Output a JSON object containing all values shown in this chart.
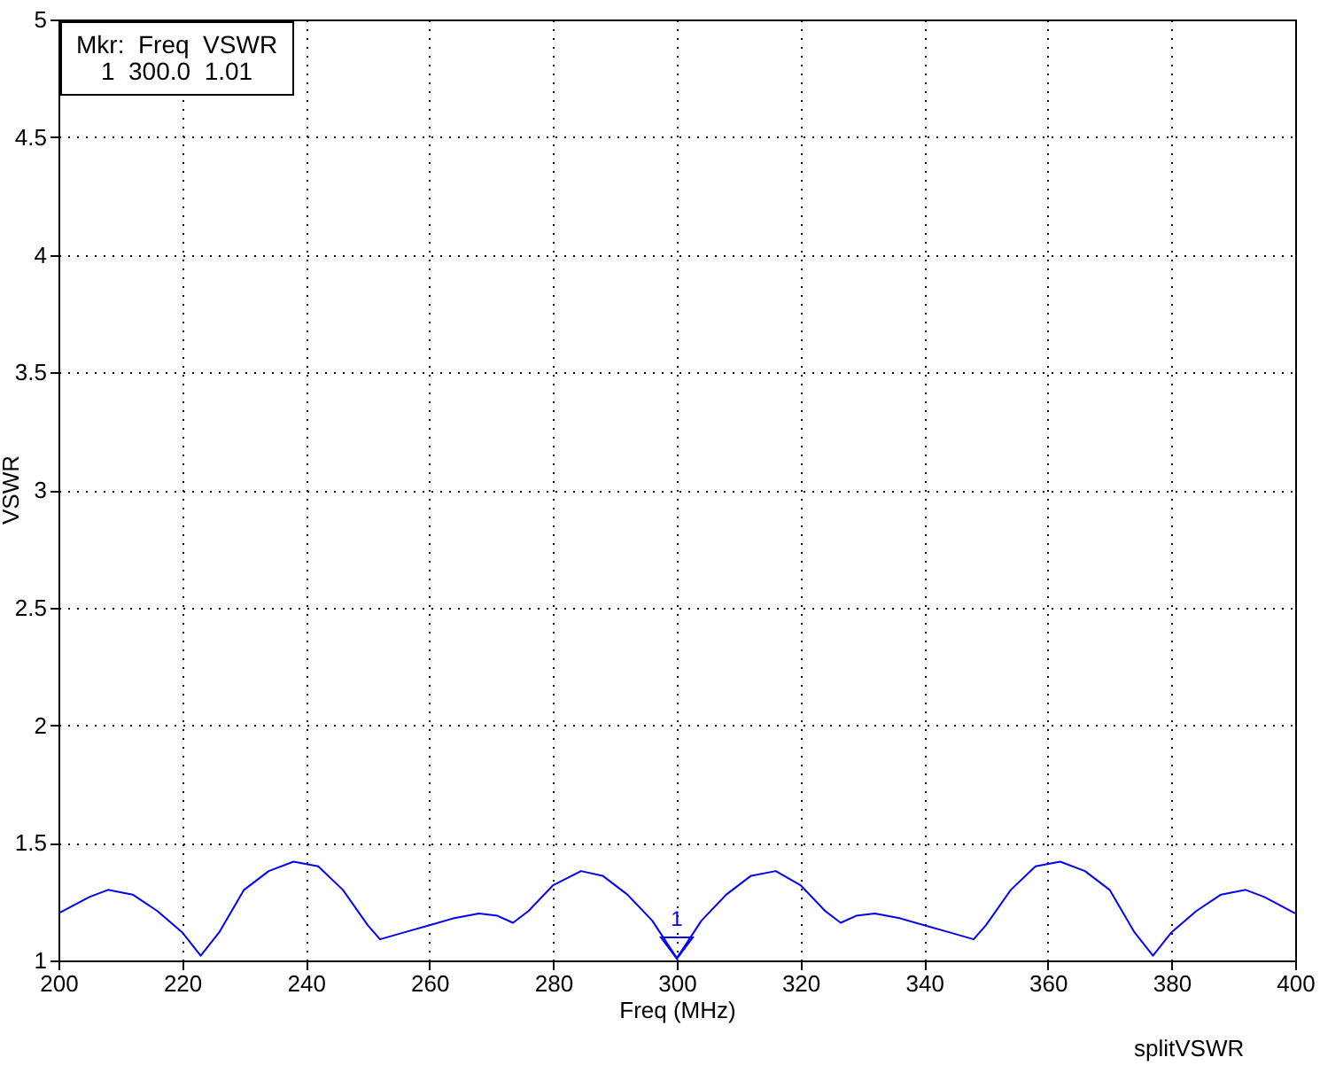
{
  "chart_data": {
    "type": "line",
    "xlabel": "Freq (MHz)",
    "ylabel": "VSWR",
    "x": [
      200,
      205,
      208,
      212,
      216,
      220,
      223,
      226,
      230,
      234,
      238,
      242,
      246,
      250,
      252,
      256,
      260,
      264,
      268,
      271,
      273.5,
      276,
      280,
      284.5,
      288,
      292,
      296,
      300,
      304,
      308,
      312,
      316,
      320,
      324,
      326.5,
      329,
      332,
      336,
      340,
      344,
      348,
      350,
      354,
      358,
      362,
      366,
      370,
      374,
      377,
      380,
      384,
      388,
      392,
      395,
      400
    ],
    "series": [
      {
        "color": "#0000ff",
        "values": [
          1.2,
          1.27,
          1.3,
          1.28,
          1.21,
          1.12,
          1.02,
          1.12,
          1.3,
          1.38,
          1.42,
          1.4,
          1.3,
          1.15,
          1.09,
          1.12,
          1.15,
          1.18,
          1.2,
          1.19,
          1.16,
          1.21,
          1.32,
          1.38,
          1.36,
          1.28,
          1.17,
          1.01,
          1.17,
          1.28,
          1.36,
          1.38,
          1.32,
          1.21,
          1.16,
          1.19,
          1.2,
          1.18,
          1.15,
          1.12,
          1.09,
          1.15,
          1.3,
          1.4,
          1.42,
          1.38,
          1.3,
          1.12,
          1.02,
          1.12,
          1.21,
          1.28,
          1.3,
          1.27,
          1.2
        ]
      }
    ],
    "xlim": [
      200,
      400
    ],
    "xticks": [
      200,
      220,
      240,
      260,
      280,
      300,
      320,
      340,
      360,
      380,
      400
    ],
    "ylim": [
      1,
      5
    ],
    "yticks": [
      1,
      1.5,
      2,
      2.5,
      3,
      3.5,
      4,
      4.5,
      5
    ],
    "grid": true,
    "marker": "none",
    "line_style": "solid",
    "annotations": [
      "Mkr:  Freq  VSWR",
      "1  300.0  1.01",
      "splitVSWR",
      {
        "text": "1",
        "x": 300,
        "y": 1.01
      }
    ]
  }
}
